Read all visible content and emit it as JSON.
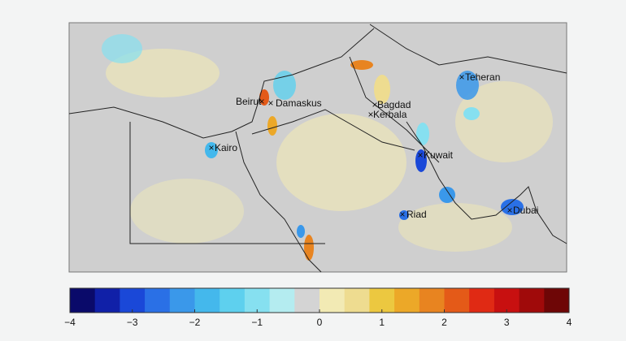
{
  "map": {
    "cities": [
      {
        "name": "Teheran"
      },
      {
        "name": "Beirut"
      },
      {
        "name": "Damaskus"
      },
      {
        "name": "Bagdad"
      },
      {
        "name": "Kerbala"
      },
      {
        "name": "Kairo"
      },
      {
        "name": "Kuwait"
      },
      {
        "name": "Riad"
      },
      {
        "name": "Dubai"
      }
    ],
    "colorbar": {
      "lim": [
        -4,
        4
      ],
      "ticks": [
        {
          "value": -4,
          "label": "−4"
        },
        {
          "value": -3,
          "label": "−3"
        },
        {
          "value": -2,
          "label": "−2"
        },
        {
          "value": -1,
          "label": "−1"
        },
        0,
        1,
        2,
        3,
        4
      ],
      "colors": [
        "#0a0a6a",
        "#1020a8",
        "#1a48d8",
        "#2a70e6",
        "#3a98ea",
        "#44b8ec",
        "#5ed0ee",
        "#86e0f0",
        "#b4ecf0",
        "#d4d4d4",
        "#f2eab4",
        "#eedc90",
        "#ecc840",
        "#eca828",
        "#e88420",
        "#e45a18",
        "#e02a14",
        "#c81010",
        "#a00a0a",
        "#6e0606"
      ]
    }
  }
}
